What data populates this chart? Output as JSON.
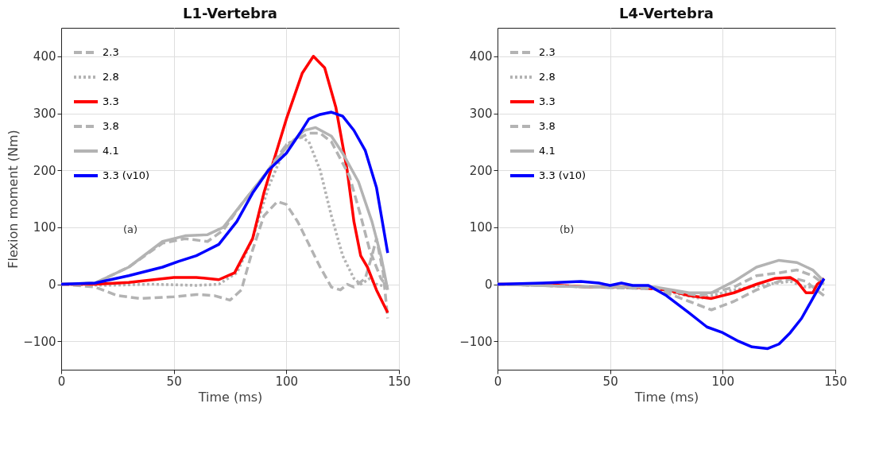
{
  "chart_data": [
    {
      "type": "line",
      "title": "L1-Vertebra",
      "xlabel": "Time (ms)",
      "ylabel": "Flexion moment (Nm)",
      "xlim": [
        0,
        150
      ],
      "ylim": [
        -150,
        450
      ],
      "xticks": [
        0,
        50,
        100,
        150
      ],
      "yticks": [
        -100,
        0,
        100,
        200,
        300,
        400
      ],
      "grid": true,
      "legend": "top left",
      "annotations": [
        "(a)"
      ],
      "series": [
        {
          "name": "2.3",
          "color": "#b3b3b3",
          "line_style": "dashed",
          "x": [
            0,
            15,
            25,
            35,
            50,
            60,
            68,
            75,
            80,
            85,
            90,
            96,
            100,
            105,
            110,
            115,
            120,
            124,
            127,
            130,
            135,
            138,
            140,
            143,
            145
          ],
          "values": [
            0,
            -5,
            -20,
            -25,
            -22,
            -18,
            -20,
            -28,
            -10,
            60,
            120,
            145,
            140,
            110,
            70,
            30,
            -5,
            -10,
            0,
            -5,
            10,
            50,
            80,
            20,
            -60
          ]
        },
        {
          "name": "2.8",
          "color": "#b3b3b3",
          "line_style": "dotted",
          "x": [
            0,
            20,
            40,
            60,
            70,
            78,
            85,
            92,
            100,
            106,
            110,
            115,
            120,
            125,
            130,
            133,
            137,
            140,
            145
          ],
          "values": [
            0,
            -2,
            0,
            -2,
            0,
            20,
            80,
            170,
            245,
            260,
            250,
            200,
            120,
            50,
            10,
            0,
            10,
            0,
            -5
          ]
        },
        {
          "name": "3.3",
          "color": "#ff0000",
          "line_style": "solid",
          "x": [
            0,
            15,
            30,
            50,
            60,
            70,
            77,
            85,
            90,
            100,
            107,
            112,
            117,
            122,
            127,
            130,
            133,
            136,
            140,
            145
          ],
          "values": [
            0,
            0,
            3,
            12,
            12,
            8,
            20,
            80,
            160,
            290,
            370,
            400,
            380,
            310,
            200,
            110,
            50,
            30,
            -10,
            -50
          ]
        },
        {
          "name": "3.8",
          "color": "#b3b3b3",
          "line_style": "dashed",
          "x": [
            0,
            15,
            30,
            45,
            55,
            65,
            72,
            80,
            90,
            100,
            110,
            115,
            120,
            128,
            133,
            137,
            140,
            142,
            145
          ],
          "values": [
            0,
            2,
            30,
            72,
            80,
            75,
            95,
            140,
            190,
            245,
            265,
            265,
            250,
            190,
            120,
            60,
            30,
            10,
            -5
          ]
        },
        {
          "name": "4.1",
          "color": "#b3b3b3",
          "line_style": "solid",
          "x": [
            0,
            15,
            30,
            45,
            55,
            65,
            72,
            80,
            90,
            100,
            108,
            113,
            120,
            125,
            132,
            138,
            142,
            145
          ],
          "values": [
            0,
            2,
            30,
            75,
            85,
            87,
            100,
            140,
            190,
            240,
            270,
            275,
            260,
            230,
            180,
            110,
            50,
            -10
          ]
        },
        {
          "name": "3.3 (v10)",
          "color": "#0000ff",
          "line_style": "solid",
          "x": [
            0,
            15,
            30,
            45,
            52,
            60,
            70,
            78,
            85,
            92,
            100,
            106,
            110,
            115,
            120,
            125,
            130,
            135,
            140,
            145
          ],
          "values": [
            0,
            2,
            15,
            30,
            40,
            50,
            70,
            110,
            160,
            200,
            230,
            265,
            290,
            298,
            302,
            295,
            270,
            235,
            170,
            55
          ]
        }
      ]
    },
    {
      "type": "line",
      "title": "L4-Vertebra",
      "xlabel": "Time (ms)",
      "xlim": [
        0,
        150
      ],
      "ylim": [
        -150,
        450
      ],
      "xticks": [
        0,
        50,
        100,
        150
      ],
      "yticks": [
        -100,
        0,
        100,
        200,
        300,
        400
      ],
      "grid": true,
      "legend": "top left",
      "annotations": [
        "(b)"
      ],
      "series": [
        {
          "name": "2.3",
          "color": "#b3b3b3",
          "line_style": "dashed",
          "x": [
            0,
            70,
            85,
            95,
            105,
            115,
            125,
            132,
            137,
            140,
            145
          ],
          "values": [
            0,
            -8,
            -30,
            -45,
            -30,
            -10,
            5,
            10,
            5,
            -5,
            -20
          ]
        },
        {
          "name": "2.8",
          "color": "#b3b3b3",
          "line_style": "dotted",
          "x": [
            0,
            70,
            90,
            105,
            120,
            130,
            137,
            142,
            145
          ],
          "values": [
            0,
            -8,
            -25,
            -10,
            0,
            5,
            -5,
            -5,
            -10
          ]
        },
        {
          "name": "3.3",
          "color": "#ff0000",
          "line_style": "solid",
          "x": [
            0,
            20,
            40,
            60,
            75,
            85,
            95,
            105,
            115,
            123,
            130,
            133,
            137,
            140,
            142,
            145
          ],
          "values": [
            0,
            0,
            -5,
            -5,
            -10,
            -20,
            -25,
            -15,
            0,
            10,
            12,
            5,
            -15,
            -15,
            0,
            10
          ]
        },
        {
          "name": "3.8",
          "color": "#b3b3b3",
          "line_style": "dashed",
          "x": [
            0,
            70,
            90,
            105,
            115,
            125,
            133,
            140,
            145
          ],
          "values": [
            0,
            -8,
            -20,
            -5,
            15,
            20,
            25,
            15,
            0
          ]
        },
        {
          "name": "4.1",
          "color": "#b3b3b3",
          "line_style": "solid",
          "x": [
            0,
            40,
            70,
            85,
            95,
            105,
            115,
            125,
            133,
            140,
            145
          ],
          "values": [
            0,
            -5,
            -5,
            -15,
            -15,
            5,
            30,
            42,
            38,
            25,
            5
          ]
        },
        {
          "name": "3.3 (v10)",
          "color": "#0000ff",
          "line_style": "solid",
          "x": [
            0,
            20,
            37,
            45,
            50,
            55,
            60,
            67,
            75,
            85,
            93,
            100,
            107,
            113,
            120,
            125,
            130,
            135,
            140,
            145
          ],
          "values": [
            0,
            2,
            5,
            2,
            -2,
            2,
            -2,
            -2,
            -20,
            -50,
            -75,
            -85,
            -100,
            -110,
            -113,
            -105,
            -85,
            -60,
            -25,
            10
          ]
        }
      ]
    }
  ]
}
